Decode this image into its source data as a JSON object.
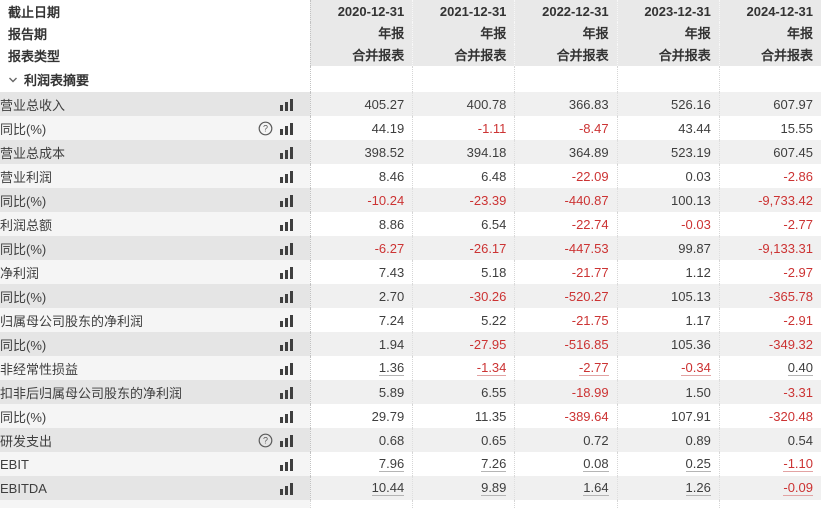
{
  "header": {
    "date_label": "截止日期",
    "period_label": "报告期",
    "type_label": "报表类型",
    "columns": [
      "2020-12-31",
      "2021-12-31",
      "2022-12-31",
      "2023-12-31",
      "2024-12-31"
    ],
    "periods": [
      "年报",
      "年报",
      "年报",
      "年报",
      "年报"
    ],
    "types": [
      "合并报表",
      "合并报表",
      "合并报表",
      "合并报表",
      "合并报表"
    ]
  },
  "section": {
    "label": "利润表摘要",
    "chevron_icon": "chevron-down-icon"
  },
  "colors": {
    "negative": "#cc3333",
    "text": "#3e3e3e",
    "header_bg": "#e9e9e9",
    "stripe_gray": "#f0f0f0"
  },
  "icons": {
    "chart": "bar-chart-icon",
    "help": "help-circle-icon"
  },
  "rows": [
    {
      "label": "营业总收入",
      "indent": 1,
      "help": false,
      "chart": true,
      "underline": false,
      "values": [
        "405.27",
        "400.78",
        "366.83",
        "526.16",
        "607.97"
      ]
    },
    {
      "label": "同比(%)",
      "indent": 2,
      "help": true,
      "chart": true,
      "underline": false,
      "values": [
        "44.19",
        "-1.11",
        "-8.47",
        "43.44",
        "15.55"
      ]
    },
    {
      "label": "营业总成本",
      "indent": 1,
      "help": false,
      "chart": true,
      "underline": false,
      "values": [
        "398.52",
        "394.18",
        "364.89",
        "523.19",
        "607.45"
      ]
    },
    {
      "label": "营业利润",
      "indent": 1,
      "help": false,
      "chart": true,
      "underline": false,
      "values": [
        "8.46",
        "6.48",
        "-22.09",
        "0.03",
        "-2.86"
      ]
    },
    {
      "label": "同比(%)",
      "indent": 2,
      "help": false,
      "chart": true,
      "underline": false,
      "values": [
        "-10.24",
        "-23.39",
        "-440.87",
        "100.13",
        "-9,733.42"
      ]
    },
    {
      "label": "利润总额",
      "indent": 1,
      "help": false,
      "chart": true,
      "underline": false,
      "values": [
        "8.86",
        "6.54",
        "-22.74",
        "-0.03",
        "-2.77"
      ]
    },
    {
      "label": "同比(%)",
      "indent": 2,
      "help": false,
      "chart": true,
      "underline": false,
      "values": [
        "-6.27",
        "-26.17",
        "-447.53",
        "99.87",
        "-9,133.31"
      ]
    },
    {
      "label": "净利润",
      "indent": 1,
      "help": false,
      "chart": true,
      "underline": false,
      "values": [
        "7.43",
        "5.18",
        "-21.77",
        "1.12",
        "-2.97"
      ]
    },
    {
      "label": "同比(%)",
      "indent": 2,
      "help": false,
      "chart": true,
      "underline": false,
      "values": [
        "2.70",
        "-30.26",
        "-520.27",
        "105.13",
        "-365.78"
      ]
    },
    {
      "label": "归属母公司股东的净利润",
      "indent": 1,
      "help": false,
      "chart": true,
      "underline": false,
      "values": [
        "7.24",
        "5.22",
        "-21.75",
        "1.17",
        "-2.91"
      ]
    },
    {
      "label": "同比(%)",
      "indent": 2,
      "help": false,
      "chart": true,
      "underline": false,
      "values": [
        "1.94",
        "-27.95",
        "-516.85",
        "105.36",
        "-349.32"
      ]
    },
    {
      "label": "非经常性损益",
      "indent": 1,
      "help": false,
      "chart": true,
      "underline": true,
      "values": [
        "1.36",
        "-1.34",
        "-2.77",
        "-0.34",
        "0.40"
      ]
    },
    {
      "label": "扣非后归属母公司股东的净利润",
      "indent": 1,
      "help": false,
      "chart": true,
      "underline": false,
      "values": [
        "5.89",
        "6.55",
        "-18.99",
        "1.50",
        "-3.31"
      ]
    },
    {
      "label": "同比(%)",
      "indent": 2,
      "help": false,
      "chart": true,
      "underline": false,
      "values": [
        "29.79",
        "11.35",
        "-389.64",
        "107.91",
        "-320.48"
      ]
    },
    {
      "label": "研发支出",
      "indent": 1,
      "help": true,
      "chart": true,
      "underline": false,
      "values": [
        "0.68",
        "0.65",
        "0.72",
        "0.89",
        "0.54"
      ]
    },
    {
      "label": "EBIT",
      "indent": 1,
      "help": false,
      "chart": true,
      "underline": true,
      "values": [
        "7.96",
        "7.26",
        "0.08",
        "0.25",
        "-1.10"
      ]
    },
    {
      "label": "EBITDA",
      "indent": 1,
      "help": false,
      "chart": true,
      "underline": true,
      "values": [
        "10.44",
        "9.89",
        "1.64",
        "1.26",
        "-0.09"
      ]
    }
  ]
}
